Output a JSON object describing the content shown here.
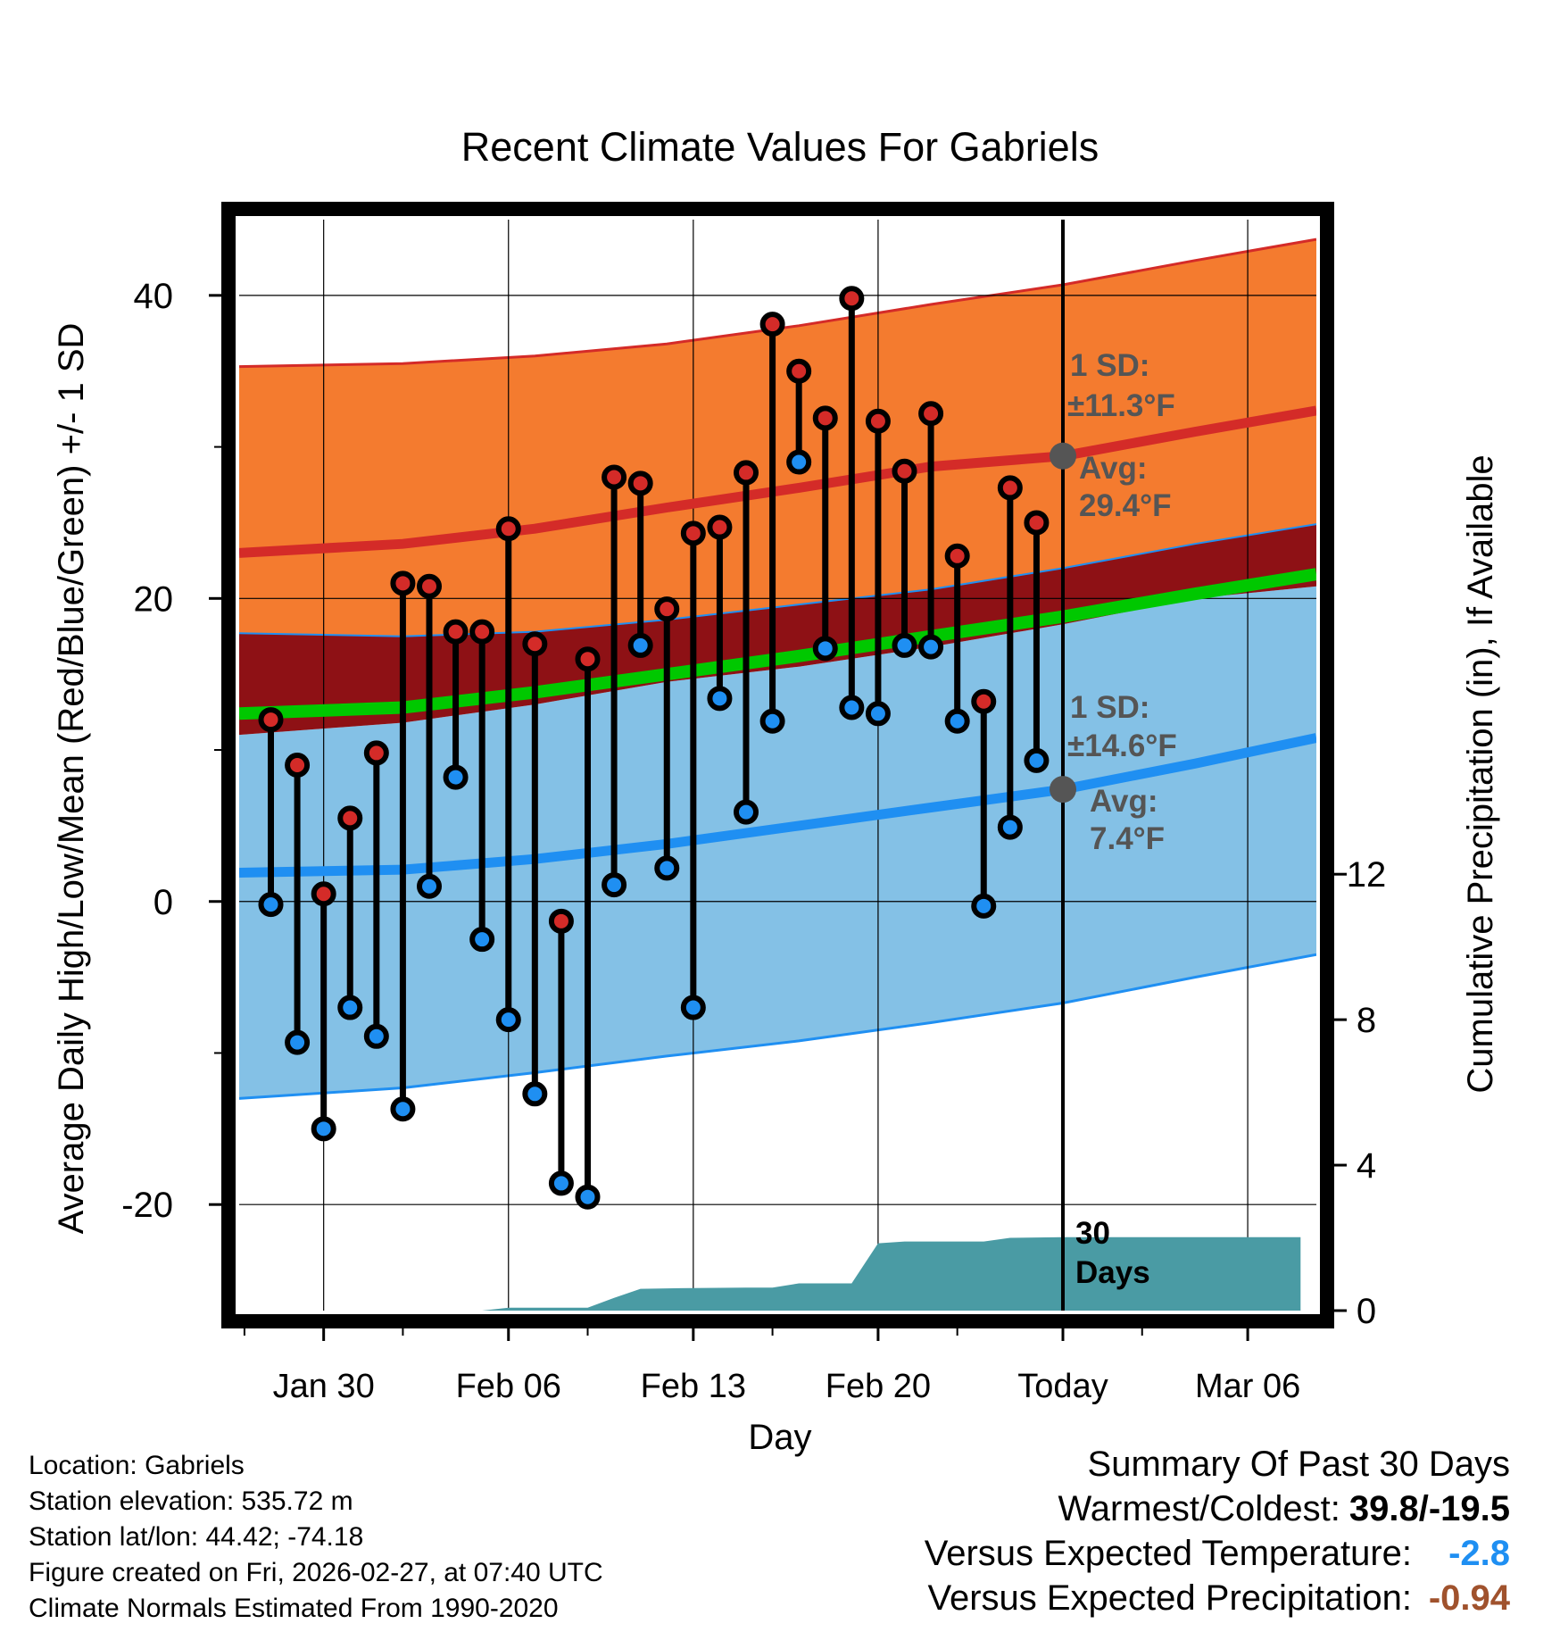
{
  "chart_data": {
    "type": "line",
    "title": "Recent Climate Values For Gabriels",
    "xlabel": "Day",
    "ylabel_left": "Average Daily High/Low/Mean (Red/Blue/Green) +/- 1 SD",
    "ylabel_right": "Cumulative Precipitation (in), If Available",
    "x_ticks": [
      {
        "day": 2,
        "label": "Jan 30"
      },
      {
        "day": 9,
        "label": "Feb 06"
      },
      {
        "day": 16,
        "label": "Feb 13"
      },
      {
        "day": 23,
        "label": "Feb 20"
      },
      {
        "day": 30,
        "label": "Today"
      },
      {
        "day": 37,
        "label": "Mar 06"
      }
    ],
    "xlim": [
      -1.2,
      39.6
    ],
    "ylim_left": [
      -27,
      45
    ],
    "ylim_right": [
      0,
      30
    ],
    "y_ticks_left": [
      -20,
      0,
      20,
      40
    ],
    "y_ticks_right": [
      0,
      4,
      8,
      12
    ],
    "today_day": 30,
    "normals": {
      "days": [
        0,
        5,
        10,
        15,
        20,
        25,
        30,
        35,
        39
      ],
      "high_avg": [
        23.0,
        23.6,
        24.6,
        26.0,
        27.3,
        28.7,
        29.4,
        31.0,
        32.4
      ],
      "high_plus_sd": [
        35.3,
        35.5,
        36.0,
        36.8,
        38.0,
        39.4,
        40.7,
        42.3,
        43.7
      ],
      "high_minus_sd": [
        17.7,
        17.5,
        17.8,
        18.6,
        19.6,
        20.6,
        22.0,
        23.6,
        24.9
      ],
      "low_avg": [
        1.9,
        2.1,
        2.8,
        3.8,
        5.0,
        6.2,
        7.4,
        9.1,
        10.8
      ],
      "low_plus_sd": [
        11.0,
        11.8,
        13.0,
        14.5,
        15.5,
        16.8,
        18.3,
        20.0,
        20.8
      ],
      "low_minus_sd": [
        -13.0,
        -12.3,
        -11.3,
        -10.2,
        -9.2,
        -8.0,
        -6.7,
        -5.0,
        -3.5
      ],
      "mean": [
        12.4,
        12.8,
        13.8,
        15.0,
        16.2,
        17.5,
        18.8,
        20.3,
        21.6
      ]
    },
    "observed": [
      {
        "day": 0,
        "high": 12.0,
        "low": -0.2
      },
      {
        "day": 1,
        "high": 9.0,
        "low": -9.3
      },
      {
        "day": 2,
        "high": 0.5,
        "low": -15.0
      },
      {
        "day": 3,
        "high": 5.5,
        "low": -7.0
      },
      {
        "day": 4,
        "high": 9.8,
        "low": -8.9
      },
      {
        "day": 5,
        "high": 21.0,
        "low": -13.7
      },
      {
        "day": 6,
        "high": 20.8,
        "low": 1.0
      },
      {
        "day": 7,
        "high": 17.8,
        "low": 8.2
      },
      {
        "day": 8,
        "high": 17.8,
        "low": -2.5
      },
      {
        "day": 9,
        "high": 24.6,
        "low": -7.8
      },
      {
        "day": 10,
        "high": 17.0,
        "low": -12.7
      },
      {
        "day": 11,
        "high": -1.3,
        "low": -18.6
      },
      {
        "day": 12,
        "high": 16.0,
        "low": -19.5
      },
      {
        "day": 13,
        "high": 28.0,
        "low": 1.1
      },
      {
        "day": 14,
        "high": 27.6,
        "low": 16.9
      },
      {
        "day": 15,
        "high": 19.3,
        "low": 2.2
      },
      {
        "day": 16,
        "high": 24.3,
        "low": -7.0
      },
      {
        "day": 17,
        "high": 24.7,
        "low": 13.4
      },
      {
        "day": 18,
        "high": 28.3,
        "low": 5.9
      },
      {
        "day": 19,
        "high": 38.1,
        "low": 11.9
      },
      {
        "day": 20,
        "high": 35.0,
        "low": 29.0
      },
      {
        "day": 21,
        "high": 31.9,
        "low": 16.7
      },
      {
        "day": 22,
        "high": 39.8,
        "low": 12.8
      },
      {
        "day": 23,
        "high": 31.7,
        "low": 12.4
      },
      {
        "day": 24,
        "high": 28.4,
        "low": 16.9
      },
      {
        "day": 25,
        "high": 32.2,
        "low": 16.8
      },
      {
        "day": 26,
        "high": 22.8,
        "low": 11.9
      },
      {
        "day": 27,
        "high": 13.2,
        "low": -0.3
      },
      {
        "day": 28,
        "high": 27.3,
        "low": 4.9
      },
      {
        "day": 29,
        "high": 25.0,
        "low": 9.3
      }
    ],
    "precip_cumulative": {
      "days": [
        8.0,
        9.0,
        11.0,
        12.0,
        13.0,
        14.0,
        16.0,
        18.0,
        19.0,
        20.0,
        21.0,
        22.0,
        23.0,
        24.0,
        25.0,
        26.0,
        27.0,
        28.0,
        30.0,
        39.0
      ],
      "values": [
        0.0,
        0.08,
        0.08,
        0.08,
        0.35,
        0.6,
        0.62,
        0.63,
        0.63,
        0.75,
        0.75,
        0.75,
        1.85,
        1.9,
        1.9,
        1.9,
        1.9,
        2.0,
        2.02,
        2.02
      ]
    },
    "annotations": {
      "high_sd_label": "1 SD:",
      "high_sd_value": "±11.3°F",
      "high_avg_label": "Avg:",
      "high_avg_value": "29.4°F",
      "low_sd_label": "1 SD:",
      "low_sd_value": "±14.6°F",
      "low_avg_label": "Avg:",
      "low_avg_value": "7.4°F",
      "period_number": "30",
      "period_unit": "Days"
    },
    "colors": {
      "high_band": "#f47b2f",
      "high_line": "#d42b28",
      "overlap_band": "#8e1115",
      "low_band": "#84c1e6",
      "low_line": "#1f8ff2",
      "mean_line": "#00c800",
      "precip": "#4a9ba4",
      "high_dot": "#d42b28",
      "low_dot": "#1f8ff2",
      "annotation_text": "#555555",
      "today_dot": "#555555"
    }
  },
  "footer": {
    "location": "Location: Gabriels",
    "elevation": "Station elevation: 535.72 m",
    "latlon": "Station lat/lon: 44.42; -74.18",
    "created": "Figure created on Fri, 2026-02-27, at 07:40 UTC",
    "normals": "Climate Normals Estimated From 1990-2020"
  },
  "summary": {
    "title": "Summary Of Past 30 Days",
    "warm_cold_label": "Warmest/Coldest:",
    "warm_cold_value": "39.8/-19.5",
    "temp_label": "Versus Expected Temperature:",
    "temp_value": "-2.8",
    "temp_color": "#1f8ff2",
    "precip_label": "Versus Expected Precipitation:",
    "precip_value": "-0.94",
    "precip_color": "#a0522d"
  }
}
